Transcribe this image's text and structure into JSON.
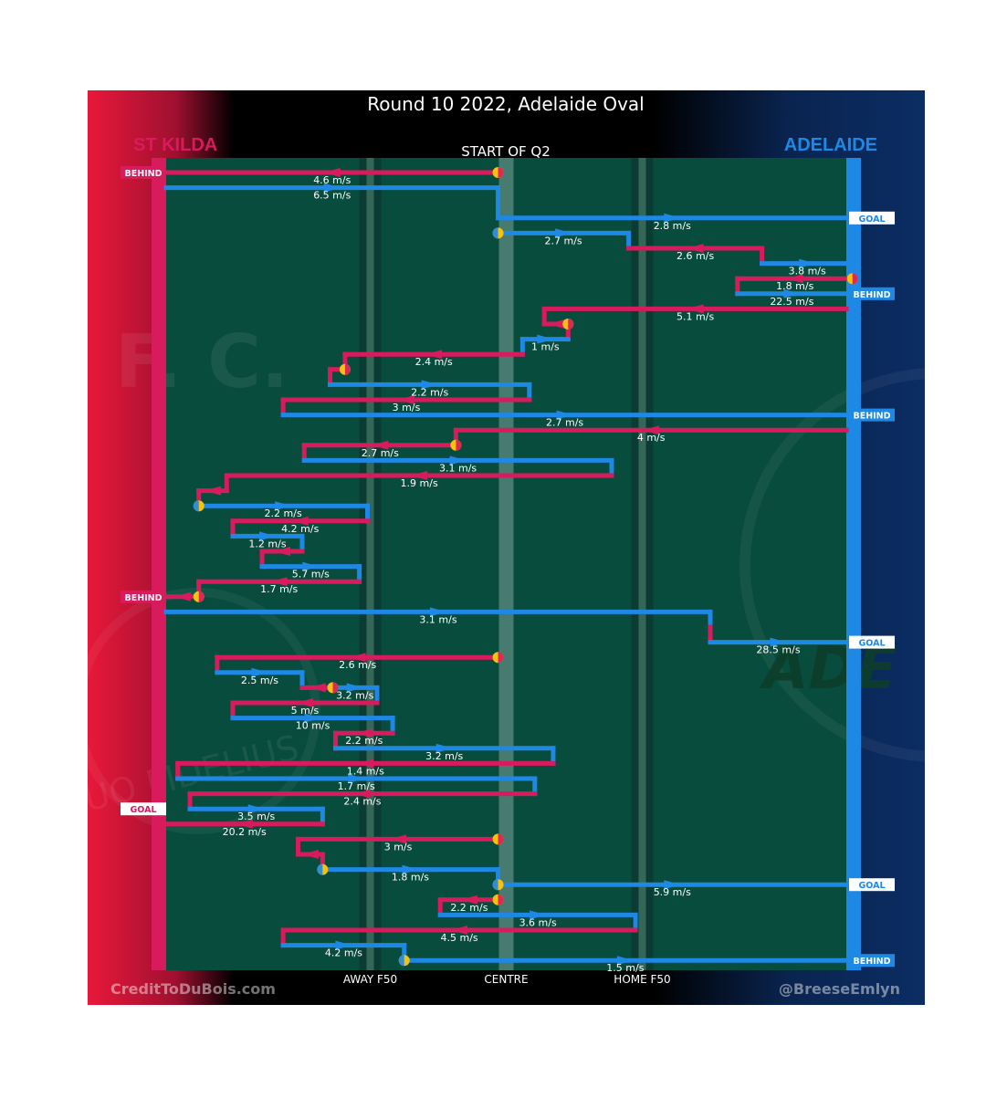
{
  "header": {
    "title": "Round 10 2022, Adelaide Oval",
    "left_team": "ST KILDA",
    "right_team": "ADELAIDE",
    "subtitle": "START OF Q2",
    "credit_left": "CreditToDuBois.com",
    "credit_right": "@BreeseEmlyn",
    "watermark_left": "F. C.",
    "watermark_motto": "UO FIDELIUS",
    "watermark_right": "ADE"
  },
  "colors": {
    "st_kilda": "#d81b5c",
    "adelaide": "#1e88e5",
    "field": "#084c3e",
    "possession_marker": "#f6c20f",
    "text": "#ffffff"
  },
  "chart_data": {
    "type": "line",
    "description_axis": "x = field position from St Kilda goal (0) to Adelaide goal (100); y = sequence order",
    "x_ticks": [
      {
        "pos": 30,
        "label": "AWAY F50"
      },
      {
        "pos": 50,
        "label": "CENTRE"
      },
      {
        "pos": 70,
        "label": "HOME F50"
      }
    ],
    "xlim": [
      0,
      100
    ],
    "ylim": [
      0,
      53
    ],
    "end_labels": [
      {
        "y": 1,
        "side": "left",
        "label": "BEHIND"
      },
      {
        "y": 4,
        "side": "right",
        "label": "GOAL"
      },
      {
        "y": 9,
        "side": "right",
        "label": "BEHIND"
      },
      {
        "y": 17,
        "side": "right",
        "label": "BEHIND"
      },
      {
        "y": 29,
        "side": "left",
        "label": "BEHIND"
      },
      {
        "y": 32,
        "side": "right",
        "label": "GOAL"
      },
      {
        "y": 43,
        "side": "left",
        "label": "GOAL"
      },
      {
        "y": 48,
        "side": "right",
        "label": "GOAL"
      },
      {
        "y": 53,
        "side": "right",
        "label": "BEHIND"
      }
    ],
    "segments": [
      {
        "team": "StK",
        "y": 1,
        "x1": 0,
        "x2": 48.8,
        "speed": "4.6 m/s",
        "start": true
      },
      {
        "team": "ADE",
        "y": 2,
        "x1": 0,
        "x2": 48.8,
        "speed": "6.5 m/s",
        "step": [
          48.8,
          4
        ]
      },
      {
        "team": "ADE",
        "y": 4,
        "x1": 48.8,
        "x2": 100,
        "speed": "2.8 m/s"
      },
      {
        "team": "ADE",
        "y": 5,
        "x1": 48.8,
        "x2": 68,
        "speed": "2.7 m/s",
        "start": true,
        "step": [
          68,
          6
        ]
      },
      {
        "team": "StK",
        "y": 6,
        "x1": 68,
        "x2": 87.6,
        "speed": "2.6 m/s",
        "step": [
          87.6,
          7
        ]
      },
      {
        "team": "ADE",
        "y": 7,
        "x1": 87.6,
        "x2": 100.9,
        "speed": "3.8 m/s",
        "step": [
          100.9,
          8
        ]
      },
      {
        "team": "StK",
        "y": 8,
        "x1": 84,
        "x2": 100.9,
        "speed": "1.8 m/s",
        "start": true,
        "step": [
          84,
          9
        ]
      },
      {
        "team": "ADE",
        "y": 9,
        "x1": 84,
        "x2": 100,
        "speed": "22.5 m/s"
      },
      {
        "team": "StK",
        "y": 10,
        "x1": 55.6,
        "x2": 100,
        "speed": "5.1 m/s",
        "step": [
          55.6,
          11
        ]
      },
      {
        "team": "StK",
        "y": 11,
        "x1": 55.6,
        "x2": 59.1,
        "speed": "",
        "start": true,
        "step": [
          59.1,
          12
        ]
      },
      {
        "team": "ADE",
        "y": 12,
        "x1": 52.4,
        "x2": 59.1,
        "speed": "1 m/s",
        "step": [
          52.4,
          13
        ]
      },
      {
        "team": "StK",
        "y": 13,
        "x1": 26.3,
        "x2": 52.4,
        "speed": "2.4 m/s",
        "step": [
          26.3,
          14
        ]
      },
      {
        "team": "StK",
        "y": 14,
        "x1": 24.1,
        "x2": 26.3,
        "speed": "",
        "start": true,
        "step": [
          24.1,
          15
        ]
      },
      {
        "team": "ADE",
        "y": 15,
        "x1": 24.1,
        "x2": 53.4,
        "speed": "2.2 m/s",
        "step": [
          53.4,
          16
        ]
      },
      {
        "team": "StK",
        "y": 16,
        "x1": 17.2,
        "x2": 53.4,
        "speed": "3 m/s",
        "step": [
          17.2,
          17
        ]
      },
      {
        "team": "ADE",
        "y": 17,
        "x1": 17.2,
        "x2": 100,
        "speed": "2.7 m/s"
      },
      {
        "team": "StK",
        "y": 18,
        "x1": 42.6,
        "x2": 100,
        "speed": "4 m/s",
        "step": [
          42.6,
          19
        ]
      },
      {
        "team": "StK",
        "y": 19,
        "x1": 20.3,
        "x2": 42.6,
        "speed": "2.7 m/s",
        "start": true,
        "step": [
          20.3,
          20
        ]
      },
      {
        "team": "ADE",
        "y": 20,
        "x1": 20.3,
        "x2": 65.5,
        "speed": "3.1 m/s",
        "step": [
          65.5,
          21
        ]
      },
      {
        "team": "StK",
        "y": 21,
        "x1": 8.9,
        "x2": 65.5,
        "speed": "1.9 m/s",
        "step": [
          8.9,
          22
        ]
      },
      {
        "team": "StK",
        "y": 22,
        "x1": 4.8,
        "x2": 8.9,
        "speed": "",
        "step": [
          4.8,
          23
        ]
      },
      {
        "team": "ADE",
        "y": 23,
        "x1": 4.8,
        "x2": 29.6,
        "speed": "2.2 m/s",
        "start": true,
        "step": [
          29.6,
          24
        ]
      },
      {
        "team": "StK",
        "y": 24,
        "x1": 9.8,
        "x2": 29.6,
        "speed": "4.2 m/s",
        "step": [
          9.8,
          25
        ]
      },
      {
        "team": "ADE",
        "y": 25,
        "x1": 9.8,
        "x2": 20.0,
        "speed": "1.2 m/s",
        "step": [
          20.0,
          26
        ]
      },
      {
        "team": "StK",
        "y": 26,
        "x1": 14.1,
        "x2": 20.0,
        "speed": "",
        "step": [
          14.1,
          27
        ]
      },
      {
        "team": "ADE",
        "y": 27,
        "x1": 14.1,
        "x2": 28.4,
        "speed": "5.7 m/s",
        "step": [
          28.4,
          28
        ]
      },
      {
        "team": "StK",
        "y": 28,
        "x1": 4.8,
        "x2": 28.4,
        "speed": "1.7 m/s",
        "step": [
          4.8,
          29
        ]
      },
      {
        "team": "StK",
        "y": 29,
        "x1": 0,
        "x2": 4.8,
        "speed": "",
        "start": true
      },
      {
        "team": "ADE",
        "y": 30,
        "x1": 0,
        "x2": 80,
        "speed": "3.1 m/s",
        "step": [
          80,
          31
        ]
      },
      {
        "team": "StK",
        "y": 31,
        "x1": 80,
        "x2": 80,
        "speed": "",
        "step": [
          80,
          32
        ]
      },
      {
        "team": "ADE",
        "y": 32,
        "x1": 80,
        "x2": 100,
        "speed": "28.5 m/s"
      },
      {
        "team": "StK",
        "y": 33,
        "x1": 7.5,
        "x2": 48.8,
        "speed": "2.6 m/s",
        "start": true,
        "step": [
          7.5,
          34
        ]
      },
      {
        "team": "ADE",
        "y": 34,
        "x1": 7.5,
        "x2": 20.0,
        "speed": "2.5 m/s",
        "step": [
          20.0,
          35
        ]
      },
      {
        "team": "StK",
        "y": 35,
        "x1": 20.0,
        "x2": 24.5,
        "speed": "",
        "start": true,
        "step": [
          24.5,
          35
        ]
      },
      {
        "team": "ADE",
        "y": 35,
        "x1": 24.5,
        "x2": 31.0,
        "speed": "3.2 m/s",
        "step": [
          31.0,
          36
        ]
      },
      {
        "team": "StK",
        "y": 36,
        "x1": 9.8,
        "x2": 31.0,
        "speed": "5 m/s",
        "step": [
          9.8,
          37
        ]
      },
      {
        "team": "ADE",
        "y": 37,
        "x1": 9.8,
        "x2": 33.3,
        "speed": "10 m/s",
        "step": [
          33.3,
          38
        ]
      },
      {
        "team": "StK",
        "y": 38,
        "x1": 24.9,
        "x2": 33.3,
        "speed": "2.2 m/s",
        "step": [
          24.9,
          39
        ]
      },
      {
        "team": "ADE",
        "y": 39,
        "x1": 24.9,
        "x2": 56.9,
        "speed": "3.2 m/s",
        "step": [
          56.9,
          40
        ]
      },
      {
        "team": "StK",
        "y": 40,
        "x1": 1.7,
        "x2": 56.9,
        "speed": "1.4 m/s",
        "step": [
          1.7,
          41
        ]
      },
      {
        "team": "ADE",
        "y": 41,
        "x1": 1.7,
        "x2": 54.2,
        "speed": "1.7 m/s",
        "step": [
          54.2,
          42
        ]
      },
      {
        "team": "StK",
        "y": 42,
        "x1": 3.5,
        "x2": 54.2,
        "speed": "2.4 m/s",
        "step": [
          3.5,
          43
        ]
      },
      {
        "team": "ADE",
        "y": 43,
        "x1": 3.5,
        "x2": 23.0,
        "speed": "3.5 m/s",
        "step": [
          23.0,
          44
        ]
      },
      {
        "team": "StK",
        "y": 44,
        "x1": 0,
        "x2": 23.0,
        "speed": "20.2 m/s"
      },
      {
        "team": "StK",
        "y": 45,
        "x1": 19.4,
        "x2": 48.8,
        "speed": "3 m/s",
        "start": true,
        "step": [
          19.4,
          46
        ]
      },
      {
        "team": "StK",
        "y": 46,
        "x1": 19.4,
        "x2": 23.0,
        "speed": "",
        "step": [
          23.0,
          47
        ]
      },
      {
        "team": "ADE",
        "y": 47,
        "x1": 23.0,
        "x2": 48.8,
        "speed": "1.8 m/s",
        "start": true,
        "step": [
          48.8,
          48
        ]
      },
      {
        "team": "ADE",
        "y": 48,
        "x1": 48.8,
        "x2": 100,
        "speed": "5.9 m/s",
        "start": true
      },
      {
        "team": "StK",
        "y": 49,
        "x1": 40.3,
        "x2": 48.8,
        "speed": "2.2 m/s",
        "start": true,
        "step": [
          40.3,
          50
        ]
      },
      {
        "team": "ADE",
        "y": 50,
        "x1": 40.3,
        "x2": 69.0,
        "speed": "3.6 m/s",
        "step": [
          69.0,
          51
        ]
      },
      {
        "team": "StK",
        "y": 51,
        "x1": 17.2,
        "x2": 69.0,
        "speed": "4.5 m/s",
        "step": [
          17.2,
          52
        ]
      },
      {
        "team": "ADE",
        "y": 52,
        "x1": 17.2,
        "x2": 35.0,
        "speed": "4.2 m/s",
        "step": [
          35.0,
          53
        ]
      },
      {
        "team": "ADE",
        "y": 53,
        "x1": 35.0,
        "x2": 100,
        "speed": "1.5 m/s",
        "start": true
      }
    ]
  }
}
